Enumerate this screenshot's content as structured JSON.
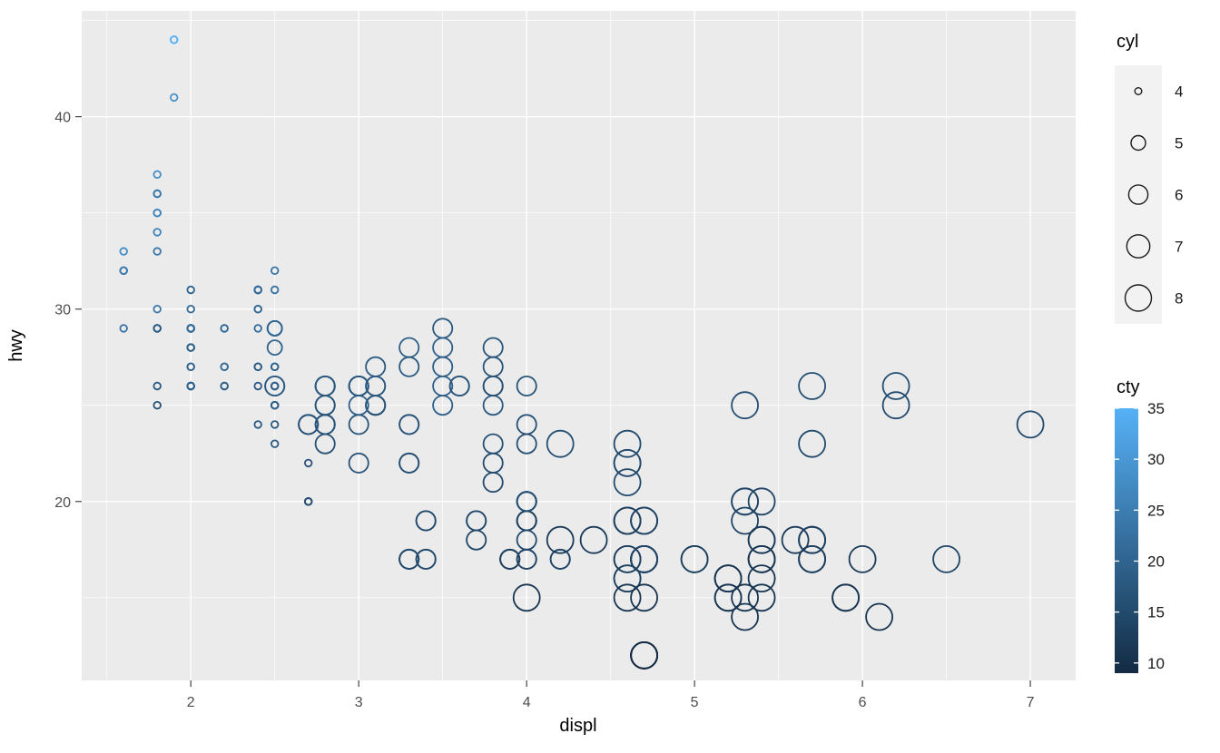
{
  "chart_data": {
    "type": "scatter",
    "title": "",
    "xlabel": "displ",
    "ylabel": "hwy",
    "x_ticks": [
      2,
      3,
      4,
      5,
      6,
      7
    ],
    "y_ticks": [
      20,
      30,
      40
    ],
    "y_minor_ticks": [
      15,
      25,
      35,
      45
    ],
    "xlim": [
      1.35,
      7.27
    ],
    "ylim": [
      10.7,
      45.5
    ],
    "panel_bg": "#EBEBEB",
    "grid_color": "#FFFFFF",
    "tick_label_color": "#4D4D4D",
    "legend_key_bg": "#F2F2F2",
    "size_legend": {
      "title": "cyl",
      "values": [
        4,
        5,
        6,
        7,
        8
      ]
    },
    "color_legend": {
      "title": "cty",
      "ticks": [
        35,
        30,
        25,
        20,
        15,
        10
      ],
      "limits": [
        9,
        35
      ],
      "low": "#132B43",
      "high": "#56B1F7"
    },
    "point_fields": [
      "displ",
      "hwy",
      "cyl",
      "cty"
    ],
    "points": [
      [
        1.8,
        29,
        4,
        18
      ],
      [
        1.8,
        29,
        4,
        21
      ],
      [
        2.0,
        31,
        4,
        20
      ],
      [
        2.0,
        30,
        4,
        21
      ],
      [
        2.8,
        26,
        6,
        16
      ],
      [
        2.8,
        26,
        6,
        18
      ],
      [
        3.1,
        27,
        6,
        18
      ],
      [
        1.8,
        26,
        4,
        18
      ],
      [
        1.8,
        25,
        4,
        16
      ],
      [
        2.0,
        28,
        4,
        20
      ],
      [
        2.0,
        27,
        4,
        19
      ],
      [
        2.8,
        25,
        6,
        15
      ],
      [
        2.8,
        25,
        6,
        17
      ],
      [
        3.1,
        25,
        6,
        17
      ],
      [
        3.1,
        25,
        6,
        15
      ],
      [
        2.8,
        24,
        6,
        15
      ],
      [
        3.1,
        25,
        6,
        17
      ],
      [
        4.2,
        23,
        8,
        16
      ],
      [
        5.3,
        20,
        8,
        14
      ],
      [
        5.3,
        15,
        8,
        11
      ],
      [
        5.3,
        20,
        8,
        14
      ],
      [
        5.7,
        17,
        8,
        13
      ],
      [
        6.0,
        17,
        8,
        12
      ],
      [
        5.7,
        26,
        8,
        16
      ],
      [
        5.7,
        23,
        8,
        15
      ],
      [
        6.2,
        26,
        8,
        16
      ],
      [
        6.2,
        25,
        8,
        15
      ],
      [
        7.0,
        24,
        8,
        15
      ],
      [
        5.3,
        19,
        8,
        14
      ],
      [
        5.3,
        14,
        8,
        11
      ],
      [
        5.7,
        17,
        8,
        13
      ],
      [
        6.5,
        17,
        8,
        14
      ],
      [
        2.4,
        27,
        4,
        19
      ],
      [
        2.4,
        30,
        4,
        22
      ],
      [
        3.1,
        26,
        6,
        18
      ],
      [
        3.5,
        29,
        6,
        18
      ],
      [
        3.6,
        26,
        6,
        17
      ],
      [
        2.4,
        24,
        4,
        18
      ],
      [
        3.0,
        24,
        6,
        17
      ],
      [
        3.3,
        22,
        6,
        16
      ],
      [
        3.3,
        22,
        6,
        16
      ],
      [
        3.3,
        24,
        6,
        17
      ],
      [
        3.3,
        24,
        6,
        17
      ],
      [
        3.3,
        17,
        6,
        11
      ],
      [
        3.8,
        22,
        6,
        15
      ],
      [
        3.8,
        21,
        6,
        15
      ],
      [
        3.8,
        23,
        6,
        16
      ],
      [
        4.0,
        23,
        6,
        16
      ],
      [
        3.7,
        19,
        6,
        15
      ],
      [
        3.7,
        18,
        6,
        14
      ],
      [
        3.9,
        17,
        6,
        13
      ],
      [
        3.9,
        17,
        6,
        14
      ],
      [
        4.7,
        19,
        8,
        14
      ],
      [
        4.7,
        19,
        8,
        14
      ],
      [
        4.7,
        12,
        8,
        9
      ],
      [
        5.2,
        15,
        8,
        11
      ],
      [
        5.2,
        16,
        8,
        11
      ],
      [
        3.9,
        17,
        6,
        13
      ],
      [
        4.7,
        17,
        8,
        13
      ],
      [
        4.7,
        12,
        8,
        9
      ],
      [
        4.7,
        17,
        8,
        13
      ],
      [
        5.2,
        16,
        8,
        11
      ],
      [
        5.7,
        18,
        8,
        13
      ],
      [
        5.9,
        15,
        8,
        11
      ],
      [
        4.7,
        17,
        8,
        13
      ],
      [
        4.7,
        17,
        8,
        13
      ],
      [
        4.7,
        12,
        8,
        9
      ],
      [
        4.7,
        17,
        8,
        13
      ],
      [
        4.7,
        12,
        8,
        9
      ],
      [
        5.2,
        15,
        8,
        11
      ],
      [
        5.2,
        16,
        8,
        11
      ],
      [
        5.7,
        17,
        8,
        13
      ],
      [
        5.9,
        15,
        8,
        11
      ],
      [
        4.7,
        17,
        8,
        13
      ],
      [
        4.6,
        17,
        8,
        11
      ],
      [
        5.4,
        17,
        8,
        11
      ],
      [
        5.4,
        18,
        8,
        12
      ],
      [
        4.0,
        17,
        6,
        14
      ],
      [
        4.0,
        19,
        6,
        15
      ],
      [
        4.0,
        19,
        6,
        13
      ],
      [
        4.6,
        19,
        8,
        13
      ],
      [
        4.6,
        19,
        8,
        13
      ],
      [
        5.0,
        17,
        8,
        13
      ],
      [
        4.2,
        17,
        6,
        14
      ],
      [
        4.2,
        17,
        6,
        14
      ],
      [
        4.6,
        16,
        8,
        13
      ],
      [
        4.6,
        16,
        8,
        13
      ],
      [
        4.6,
        17,
        8,
        13
      ],
      [
        5.4,
        15,
        8,
        11
      ],
      [
        5.4,
        17,
        8,
        13
      ],
      [
        3.8,
        26,
        6,
        18
      ],
      [
        3.8,
        25,
        6,
        18
      ],
      [
        4.0,
        26,
        6,
        17
      ],
      [
        4.0,
        24,
        6,
        16
      ],
      [
        4.6,
        21,
        8,
        15
      ],
      [
        4.6,
        22,
        8,
        15
      ],
      [
        4.6,
        23,
        8,
        15
      ],
      [
        4.6,
        22,
        8,
        15
      ],
      [
        5.4,
        20,
        8,
        14
      ],
      [
        1.6,
        33,
        4,
        28
      ],
      [
        1.6,
        32,
        4,
        24
      ],
      [
        1.6,
        32,
        4,
        25
      ],
      [
        1.6,
        29,
        4,
        23
      ],
      [
        1.6,
        32,
        4,
        24
      ],
      [
        1.8,
        34,
        4,
        26
      ],
      [
        1.8,
        36,
        4,
        25
      ],
      [
        1.8,
        36,
        4,
        24
      ],
      [
        2.0,
        29,
        4,
        21
      ],
      [
        2.4,
        26,
        4,
        18
      ],
      [
        2.4,
        27,
        4,
        18
      ],
      [
        2.4,
        30,
        4,
        21
      ],
      [
        2.4,
        31,
        4,
        21
      ],
      [
        2.5,
        26,
        6,
        18
      ],
      [
        2.5,
        26,
        6,
        18
      ],
      [
        3.3,
        28,
        6,
        19
      ],
      [
        2.0,
        26,
        4,
        19
      ],
      [
        2.0,
        29,
        4,
        19
      ],
      [
        2.0,
        28,
        4,
        20
      ],
      [
        2.0,
        27,
        4,
        20
      ],
      [
        2.7,
        24,
        6,
        17
      ],
      [
        2.7,
        24,
        6,
        16
      ],
      [
        2.7,
        24,
        6,
        17
      ],
      [
        3.0,
        22,
        6,
        17
      ],
      [
        3.7,
        19,
        6,
        15
      ],
      [
        4.0,
        20,
        6,
        15
      ],
      [
        4.7,
        17,
        8,
        14
      ],
      [
        4.7,
        12,
        8,
        9
      ],
      [
        4.7,
        19,
        8,
        14
      ],
      [
        5.7,
        18,
        8,
        13
      ],
      [
        6.1,
        14,
        8,
        11
      ],
      [
        4.0,
        15,
        8,
        11
      ],
      [
        4.2,
        18,
        8,
        12
      ],
      [
        4.4,
        18,
        8,
        12
      ],
      [
        4.6,
        15,
        8,
        11
      ],
      [
        5.4,
        17,
        8,
        11
      ],
      [
        5.4,
        16,
        8,
        11
      ],
      [
        5.4,
        18,
        8,
        12
      ],
      [
        4.0,
        17,
        6,
        14
      ],
      [
        4.0,
        19,
        6,
        13
      ],
      [
        4.6,
        19,
        8,
        13
      ],
      [
        5.0,
        17,
        8,
        13
      ],
      [
        2.4,
        29,
        4,
        21
      ],
      [
        2.4,
        27,
        4,
        19
      ],
      [
        2.5,
        31,
        4,
        23
      ],
      [
        2.5,
        32,
        4,
        23
      ],
      [
        3.5,
        27,
        6,
        19
      ],
      [
        3.5,
        26,
        6,
        19
      ],
      [
        3.0,
        26,
        6,
        18
      ],
      [
        3.0,
        25,
        6,
        19
      ],
      [
        3.5,
        25,
        6,
        19
      ],
      [
        3.3,
        17,
        6,
        14
      ],
      [
        3.3,
        17,
        6,
        15
      ],
      [
        4.0,
        20,
        6,
        14
      ],
      [
        5.6,
        18,
        8,
        12
      ],
      [
        3.1,
        26,
        6,
        18
      ],
      [
        3.8,
        26,
        6,
        16
      ],
      [
        3.8,
        27,
        6,
        17
      ],
      [
        3.8,
        28,
        6,
        17
      ],
      [
        5.3,
        25,
        8,
        16
      ],
      [
        2.5,
        25,
        4,
        18
      ],
      [
        2.5,
        24,
        4,
        18
      ],
      [
        2.5,
        27,
        4,
        20
      ],
      [
        2.5,
        25,
        4,
        19
      ],
      [
        2.5,
        26,
        4,
        20
      ],
      [
        2.5,
        23,
        4,
        18
      ],
      [
        2.2,
        26,
        4,
        21
      ],
      [
        2.2,
        26,
        4,
        19
      ],
      [
        2.5,
        26,
        4,
        19
      ],
      [
        2.5,
        26,
        4,
        19
      ],
      [
        2.5,
        25,
        4,
        20
      ],
      [
        2.5,
        27,
        4,
        20
      ],
      [
        2.5,
        25,
        4,
        19
      ],
      [
        2.5,
        27,
        4,
        20
      ],
      [
        2.7,
        20,
        4,
        15
      ],
      [
        2.7,
        20,
        4,
        16
      ],
      [
        3.4,
        19,
        6,
        15
      ],
      [
        3.4,
        17,
        6,
        15
      ],
      [
        4.0,
        20,
        6,
        16
      ],
      [
        4.7,
        17,
        8,
        14
      ],
      [
        2.2,
        29,
        4,
        21
      ],
      [
        2.2,
        27,
        4,
        21
      ],
      [
        2.4,
        31,
        4,
        21
      ],
      [
        2.4,
        31,
        4,
        21
      ],
      [
        3.0,
        26,
        6,
        18
      ],
      [
        3.0,
        26,
        6,
        18
      ],
      [
        3.5,
        28,
        6,
        19
      ],
      [
        2.2,
        27,
        4,
        21
      ],
      [
        2.2,
        29,
        4,
        21
      ],
      [
        2.4,
        31,
        4,
        21
      ],
      [
        2.4,
        31,
        4,
        22
      ],
      [
        3.0,
        26,
        6,
        18
      ],
      [
        3.0,
        26,
        6,
        18
      ],
      [
        3.3,
        27,
        6,
        18
      ],
      [
        1.8,
        30,
        4,
        24
      ],
      [
        1.8,
        33,
        4,
        24
      ],
      [
        1.8,
        35,
        4,
        26
      ],
      [
        1.8,
        37,
        4,
        28
      ],
      [
        1.8,
        35,
        4,
        26
      ],
      [
        4.7,
        15,
        8,
        11
      ],
      [
        5.7,
        18,
        8,
        13
      ],
      [
        2.7,
        20,
        4,
        15
      ],
      [
        2.7,
        20,
        4,
        16
      ],
      [
        2.7,
        22,
        4,
        17
      ],
      [
        3.4,
        17,
        6,
        15
      ],
      [
        3.4,
        19,
        6,
        15
      ],
      [
        4.0,
        18,
        6,
        15
      ],
      [
        4.0,
        20,
        6,
        16
      ],
      [
        2.0,
        29,
        4,
        21
      ],
      [
        2.0,
        26,
        4,
        19
      ],
      [
        2.0,
        29,
        4,
        21
      ],
      [
        2.0,
        29,
        4,
        22
      ],
      [
        2.8,
        24,
        6,
        17
      ],
      [
        1.9,
        44,
        4,
        33
      ],
      [
        2.0,
        29,
        4,
        21
      ],
      [
        2.0,
        26,
        4,
        19
      ],
      [
        2.0,
        29,
        4,
        22
      ],
      [
        2.0,
        29,
        4,
        21
      ],
      [
        2.5,
        29,
        5,
        21
      ],
      [
        2.5,
        29,
        5,
        21
      ],
      [
        2.8,
        23,
        6,
        16
      ],
      [
        2.8,
        24,
        6,
        17
      ],
      [
        1.9,
        44,
        4,
        35
      ],
      [
        1.9,
        41,
        4,
        29
      ],
      [
        2.0,
        26,
        4,
        19
      ],
      [
        2.0,
        29,
        4,
        21
      ],
      [
        2.5,
        28,
        5,
        20
      ],
      [
        2.5,
        29,
        5,
        20
      ],
      [
        1.8,
        29,
        4,
        21
      ],
      [
        1.8,
        29,
        4,
        18
      ],
      [
        2.0,
        28,
        4,
        19
      ],
      [
        2.0,
        29,
        4,
        21
      ],
      [
        2.8,
        26,
        6,
        16
      ],
      [
        2.8,
        26,
        6,
        18
      ],
      [
        3.6,
        26,
        6,
        17
      ]
    ]
  }
}
